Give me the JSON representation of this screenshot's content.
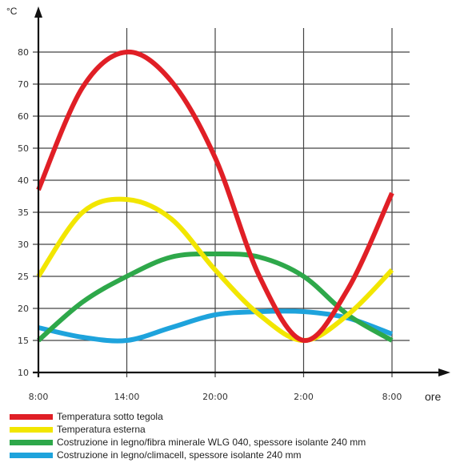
{
  "chart_data": {
    "type": "line",
    "y_unit": "°C",
    "x_unit": "ore",
    "x_ticks": [
      "8:00",
      "14:00",
      "20:00",
      "2:00",
      "8:00"
    ],
    "x_hours": [
      0,
      3,
      6,
      9,
      12,
      15,
      18,
      21,
      24
    ],
    "y_ticks": [
      10,
      15,
      20,
      25,
      30,
      35,
      40,
      50,
      60,
      70,
      80
    ],
    "grid": true,
    "series": [
      {
        "name": "Temperatura sotto tegola",
        "color": "#e01f26",
        "values": [
          38.5,
          69,
          80,
          71,
          47,
          25,
          15,
          23,
          38
        ]
      },
      {
        "name": "Temperatura esterna",
        "color": "#f2e600",
        "values": [
          25,
          35,
          37,
          34,
          26,
          19,
          15,
          19,
          26
        ]
      },
      {
        "name": "Costruzione in legno/fibra minerale WLG 040, spessore isolante 240 mm",
        "color": "#2ea84a",
        "values": [
          15,
          21,
          25,
          28,
          28.5,
          28,
          25,
          19,
          15
        ]
      },
      {
        "name": "Costruzione in legno/climacell, spessore isolante 240 mm",
        "color": "#1ea3dc",
        "values": [
          17,
          15.5,
          15,
          17,
          19,
          19.5,
          19.5,
          18.5,
          16
        ]
      }
    ]
  }
}
